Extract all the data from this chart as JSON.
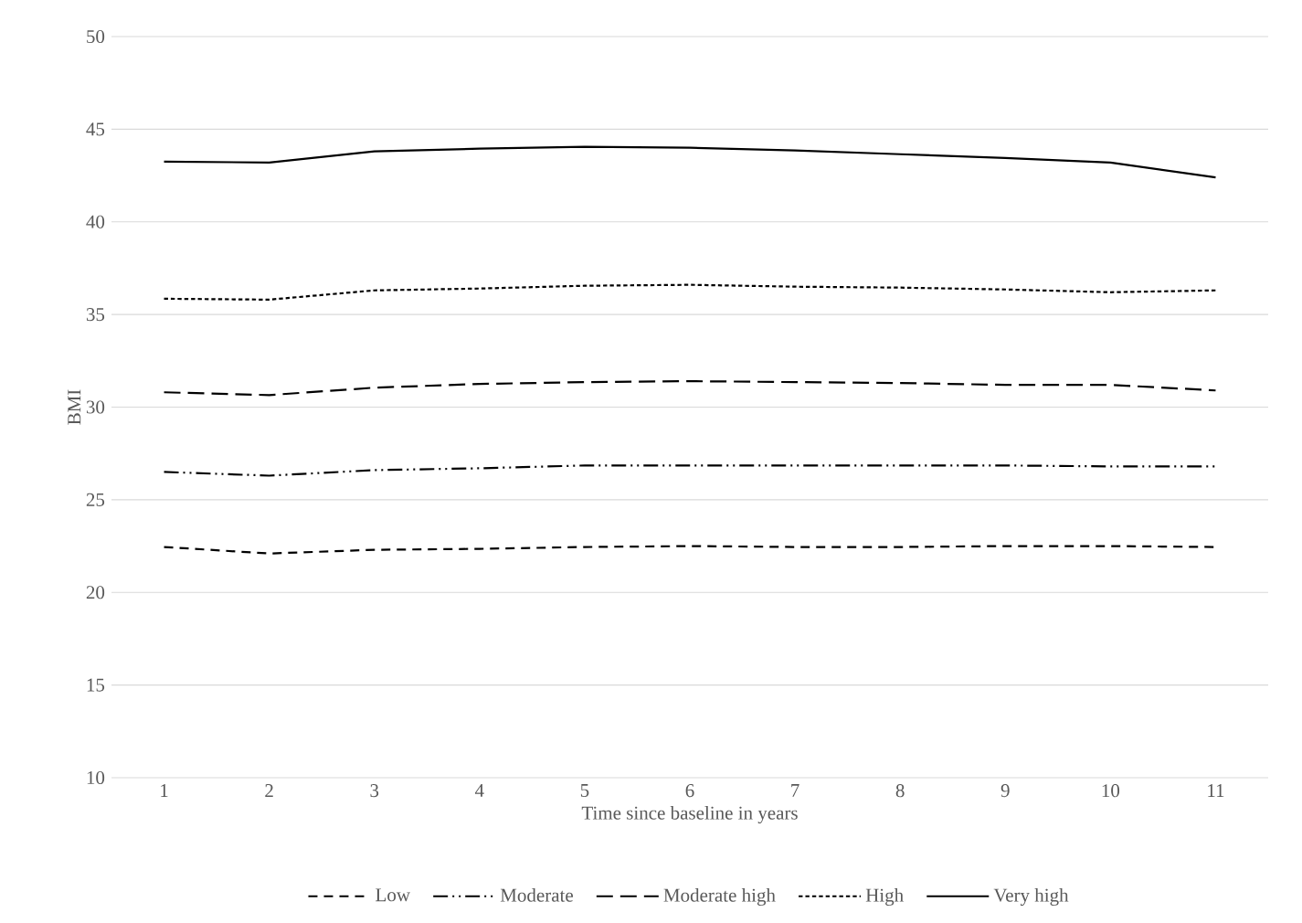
{
  "chart_data": {
    "type": "line",
    "xlabel": "Time since baseline in years",
    "ylabel": "BMI",
    "categories": [
      "1",
      "2",
      "3",
      "4",
      "5",
      "6",
      "7",
      "8",
      "9",
      "10",
      "11"
    ],
    "series": [
      {
        "name": "Low",
        "color": "#000000",
        "line_style": "dashed",
        "values": [
          22.45,
          22.1,
          22.3,
          22.35,
          22.45,
          22.5,
          22.45,
          22.45,
          22.5,
          22.5,
          22.45
        ]
      },
      {
        "name": "Moderate",
        "color": "#000000",
        "line_style": "dashdotdotted",
        "values": [
          26.5,
          26.3,
          26.6,
          26.7,
          26.85,
          26.85,
          26.85,
          26.85,
          26.85,
          26.8,
          26.8
        ]
      },
      {
        "name": "Moderate high",
        "color": "#000000",
        "line_style": "longdashed",
        "values": [
          30.8,
          30.65,
          31.05,
          31.25,
          31.35,
          31.4,
          31.35,
          31.3,
          31.2,
          31.2,
          30.9
        ]
      },
      {
        "name": "High",
        "color": "#000000",
        "line_style": "dotted",
        "values": [
          35.85,
          35.8,
          36.3,
          36.4,
          36.55,
          36.6,
          36.5,
          36.45,
          36.35,
          36.2,
          36.3
        ]
      },
      {
        "name": "Very high",
        "color": "#000000",
        "line_style": "solid",
        "values": [
          43.25,
          43.2,
          43.8,
          43.95,
          44.05,
          44.0,
          43.85,
          43.65,
          43.45,
          43.2,
          42.4
        ]
      }
    ],
    "ylim": [
      10,
      50
    ],
    "yticks": [
      10,
      15,
      20,
      25,
      30,
      35,
      40,
      45,
      50
    ],
    "grid": "y",
    "legend": "bottom"
  }
}
